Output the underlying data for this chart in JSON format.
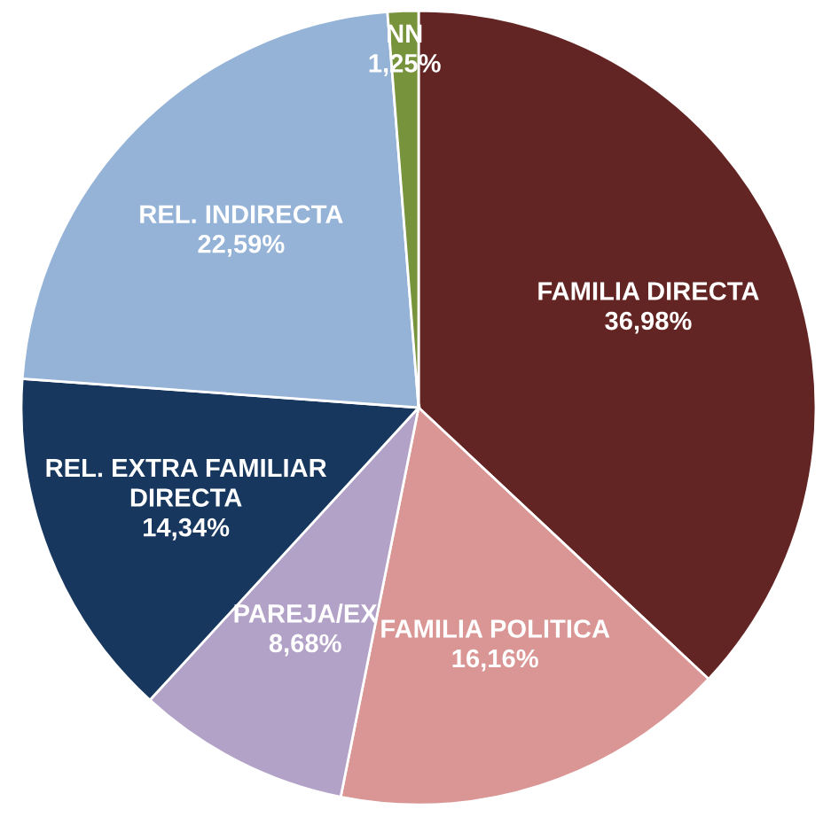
{
  "chart_data": {
    "type": "pie",
    "categories": [
      "FAMILIA DIRECTA",
      "FAMILIA POLITICA",
      "PAREJA/EX",
      "REL. EXTRA FAMILIAR\nDIRECTA",
      "REL. INDIRECTA",
      "NN"
    ],
    "values": [
      36.98,
      16.16,
      8.68,
      14.34,
      22.59,
      1.25
    ],
    "value_labels": [
      "36,98%",
      "16,16%",
      "8,68%",
      "14,34%",
      "22,59%",
      "1,25%"
    ],
    "colors": [
      "#632523",
      "#d99694",
      "#b3a2c7",
      "#17375e",
      "#95b3d7",
      "#77933c"
    ],
    "legend": false
  }
}
